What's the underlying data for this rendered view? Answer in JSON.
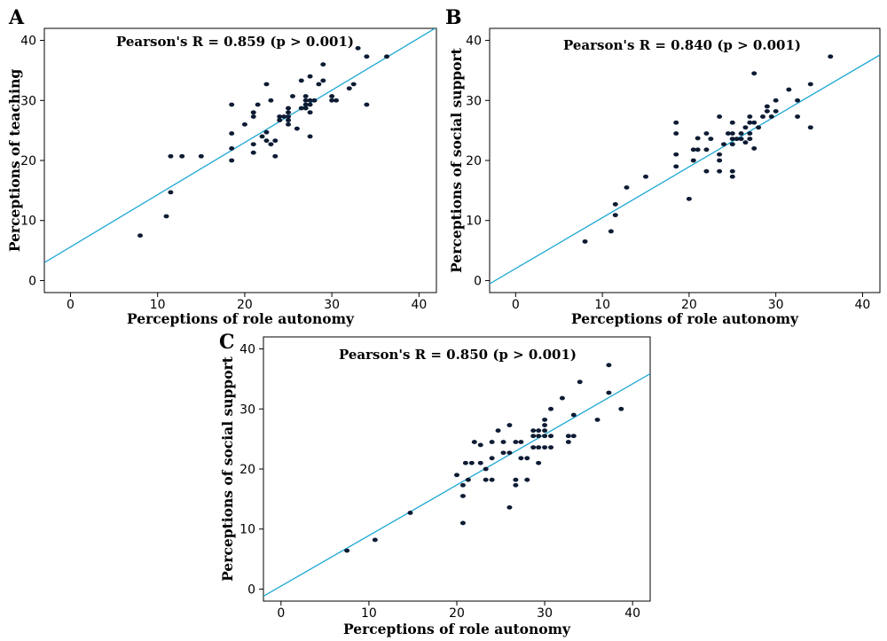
{
  "chart_data": [
    {
      "panel": "A",
      "type": "scatter",
      "annotation": "Pearson's R = 0.859 (p > 0.001)",
      "xlabel": "Perceptions of role autonomy",
      "ylabel": "Perceptions of teaching",
      "xlim": [
        -3,
        42
      ],
      "ylim": [
        -2,
        42
      ],
      "xticks": [
        0,
        10,
        20,
        30,
        40
      ],
      "yticks": [
        0,
        10,
        20,
        30,
        40
      ],
      "fit_line": {
        "intercept": 5.6,
        "slope": 0.87
      },
      "points": [
        [
          8,
          7.5
        ],
        [
          11,
          10.7
        ],
        [
          11.5,
          14.7
        ],
        [
          11.5,
          20.7
        ],
        [
          12.8,
          20.7
        ],
        [
          15,
          20.7
        ],
        [
          18.5,
          20
        ],
        [
          18.5,
          22
        ],
        [
          18.5,
          24.5
        ],
        [
          18.5,
          29.3
        ],
        [
          20,
          26
        ],
        [
          21,
          21.3
        ],
        [
          21,
          22.7
        ],
        [
          21,
          27.3
        ],
        [
          21,
          28
        ],
        [
          21.5,
          29.3
        ],
        [
          22,
          24
        ],
        [
          22.5,
          32.7
        ],
        [
          22.5,
          23.3
        ],
        [
          22.5,
          24.7
        ],
        [
          23,
          22.7
        ],
        [
          23,
          30
        ],
        [
          23.5,
          20.7
        ],
        [
          23.5,
          23.3
        ],
        [
          24,
          26.7
        ],
        [
          24,
          27.3
        ],
        [
          24.5,
          27.3
        ],
        [
          25,
          26
        ],
        [
          25,
          26.7
        ],
        [
          25,
          27.3
        ],
        [
          25,
          28
        ],
        [
          25,
          28.7
        ],
        [
          25.5,
          30.7
        ],
        [
          26,
          25.3
        ],
        [
          26.5,
          28.7
        ],
        [
          26.5,
          33.3
        ],
        [
          27,
          29.3
        ],
        [
          27,
          30
        ],
        [
          27,
          30.7
        ],
        [
          27,
          28.7
        ],
        [
          27.5,
          24
        ],
        [
          27.5,
          28
        ],
        [
          27.5,
          29.3
        ],
        [
          27.5,
          30
        ],
        [
          27.5,
          34
        ],
        [
          28,
          30
        ],
        [
          28.5,
          32.7
        ],
        [
          29,
          33.3
        ],
        [
          29,
          36
        ],
        [
          30,
          30
        ],
        [
          30,
          30.7
        ],
        [
          30.5,
          30
        ],
        [
          32,
          32
        ],
        [
          32.5,
          32.7
        ],
        [
          33,
          38.7
        ],
        [
          34,
          37.3
        ],
        [
          34,
          29.3
        ],
        [
          36.3,
          37.3
        ]
      ]
    },
    {
      "panel": "B",
      "type": "scatter",
      "annotation": "Pearson's R = 0.840 (p > 0.001)",
      "xlabel": "Perceptions of role autonomy",
      "ylabel": "Perceptions of social support",
      "xlim": [
        -3,
        42
      ],
      "ylim": [
        -2,
        42
      ],
      "xticks": [
        0,
        10,
        20,
        30,
        40
      ],
      "yticks": [
        0,
        10,
        20,
        30,
        40
      ],
      "fit_line": {
        "intercept": 2.0,
        "slope": 0.847
      },
      "points": [
        [
          8,
          6.5
        ],
        [
          11,
          8.2
        ],
        [
          11.5,
          10.9
        ],
        [
          11.5,
          12.7
        ],
        [
          12.8,
          15.5
        ],
        [
          15,
          17.3
        ],
        [
          18.5,
          19
        ],
        [
          18.5,
          21
        ],
        [
          18.5,
          24.5
        ],
        [
          18.5,
          26.3
        ],
        [
          20,
          13.6
        ],
        [
          20.5,
          21.8
        ],
        [
          20.5,
          20
        ],
        [
          21,
          21.8
        ],
        [
          21,
          23.7
        ],
        [
          22,
          18.2
        ],
        [
          22,
          21.8
        ],
        [
          22,
          24.5
        ],
        [
          22.5,
          23.6
        ],
        [
          23.5,
          18.2
        ],
        [
          23.5,
          20
        ],
        [
          23.5,
          21
        ],
        [
          23.5,
          27.3
        ],
        [
          24,
          22.7
        ],
        [
          24.5,
          24.5
        ],
        [
          25,
          17.3
        ],
        [
          25,
          18.2
        ],
        [
          25,
          22.7
        ],
        [
          25,
          23.6
        ],
        [
          25,
          24.5
        ],
        [
          25,
          26.3
        ],
        [
          25.5,
          23.6
        ],
        [
          26,
          23.6
        ],
        [
          26,
          24.5
        ],
        [
          26.5,
          23
        ],
        [
          26.5,
          25.5
        ],
        [
          27,
          24.5
        ],
        [
          27,
          26.3
        ],
        [
          27,
          27.3
        ],
        [
          27,
          23.6
        ],
        [
          27.5,
          22
        ],
        [
          27.5,
          26.3
        ],
        [
          27.5,
          34.5
        ],
        [
          28,
          25.5
        ],
        [
          28.5,
          27.3
        ],
        [
          29,
          28.2
        ],
        [
          29,
          29
        ],
        [
          29.5,
          27.3
        ],
        [
          30,
          28.2
        ],
        [
          30,
          30
        ],
        [
          31.5,
          31.8
        ],
        [
          32.5,
          27.3
        ],
        [
          32.5,
          30
        ],
        [
          34,
          25.5
        ],
        [
          34,
          32.7
        ],
        [
          36.3,
          37.3
        ]
      ]
    },
    {
      "panel": "C",
      "type": "scatter",
      "annotation": "Pearson's R = 0.850 (p > 0.001)",
      "xlabel": "Perceptions of role autonomy",
      "ylabel": "Perceptions of social support",
      "xlim": [
        -2,
        42
      ],
      "ylim": [
        -2,
        42
      ],
      "xticks": [
        0,
        10,
        20,
        30,
        40
      ],
      "yticks": [
        0,
        10,
        20,
        30,
        40
      ],
      "fit_line": {
        "intercept": 0.5,
        "slope": 0.842
      },
      "points": [
        [
          7.5,
          6.4
        ],
        [
          10.7,
          8.2
        ],
        [
          14.7,
          12.7
        ],
        [
          20.7,
          11
        ],
        [
          20.7,
          15.5
        ],
        [
          20.7,
          17.3
        ],
        [
          20,
          19
        ],
        [
          21,
          21
        ],
        [
          21.3,
          18.2
        ],
        [
          21.7,
          21
        ],
        [
          22,
          24.5
        ],
        [
          22.7,
          21
        ],
        [
          22.7,
          24
        ],
        [
          23.3,
          18.2
        ],
        [
          23.3,
          20
        ],
        [
          24,
          18.2
        ],
        [
          24,
          24.5
        ],
        [
          24,
          21.8
        ],
        [
          24.7,
          26.4
        ],
        [
          25.3,
          22.7
        ],
        [
          25.3,
          24.5
        ],
        [
          26,
          13.6
        ],
        [
          26,
          22.7
        ],
        [
          26,
          27.3
        ],
        [
          26.7,
          17.3
        ],
        [
          26.7,
          18.2
        ],
        [
          26.7,
          24.5
        ],
        [
          27.3,
          21.8
        ],
        [
          27.3,
          24.5
        ],
        [
          28,
          18.2
        ],
        [
          28,
          21.8
        ],
        [
          28.7,
          23.6
        ],
        [
          28.7,
          25.5
        ],
        [
          28.7,
          26.4
        ],
        [
          29.3,
          21
        ],
        [
          29.3,
          23.6
        ],
        [
          29.3,
          25.5
        ],
        [
          29.3,
          26.4
        ],
        [
          30,
          23.6
        ],
        [
          30,
          25.5
        ],
        [
          30,
          26.4
        ],
        [
          30,
          27.3
        ],
        [
          30,
          28.2
        ],
        [
          30.7,
          23.6
        ],
        [
          30.7,
          25.5
        ],
        [
          30.7,
          30
        ],
        [
          32,
          31.8
        ],
        [
          32.7,
          24.5
        ],
        [
          32.7,
          25.5
        ],
        [
          33.3,
          25.5
        ],
        [
          33.3,
          29
        ],
        [
          34,
          34.5
        ],
        [
          36,
          28.2
        ],
        [
          37.3,
          32.7
        ],
        [
          37.3,
          37.3
        ],
        [
          38.7,
          30
        ]
      ]
    }
  ]
}
